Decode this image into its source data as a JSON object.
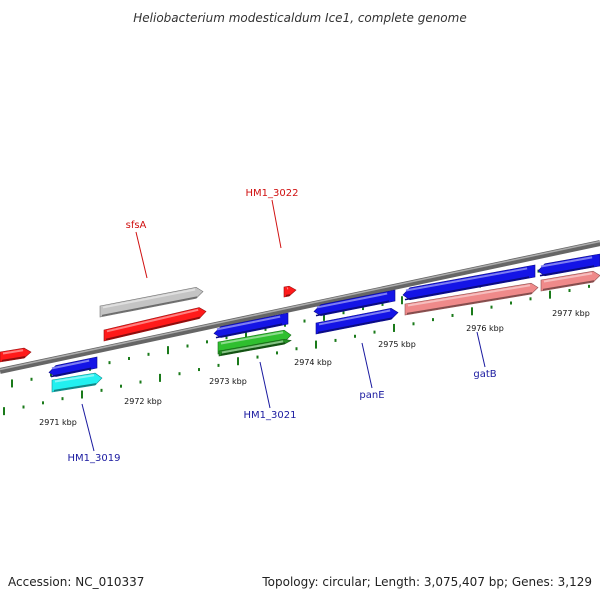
{
  "title": "Heliobacterium modesticaldum Ice1, complete genome",
  "footer": {
    "accession": "Accession: NC_010337",
    "topology": "Topology: circular; Length: 3,075,407 bp; Genes: 3,129"
  },
  "colors": {
    "backbone": "#808080",
    "tick": "#1a7a1a",
    "label_red": "#d01010",
    "label_blue": "#1a1aa0",
    "gene_red": "#ff1a1a",
    "gene_gray": "#c4c4c4",
    "gene_blue": "#1414e6",
    "gene_cyan": "#22f0f0",
    "gene_green": "#2fbf2f",
    "gene_salmon": "#ef8a8a"
  },
  "scale_labels": [
    {
      "id": "kbp-2971",
      "text": "2971 kbp"
    },
    {
      "id": "kbp-2972",
      "text": "2972 kbp"
    },
    {
      "id": "kbp-2973",
      "text": "2973 kbp"
    },
    {
      "id": "kbp-2974",
      "text": "2974 kbp"
    },
    {
      "id": "kbp-2975",
      "text": "2975 kbp"
    },
    {
      "id": "kbp-2976",
      "text": "2976 kbp"
    },
    {
      "id": "kbp-2977",
      "text": "2977 kbp"
    }
  ],
  "gene_labels": [
    {
      "id": "sfsA",
      "text": "sfsA",
      "color": "label_red"
    },
    {
      "id": "HM1_3022",
      "text": "HM1_3022",
      "color": "label_red"
    },
    {
      "id": "HM1_3019",
      "text": "HM1_3019",
      "color": "label_blue"
    },
    {
      "id": "HM1_3021",
      "text": "HM1_3021",
      "color": "label_blue"
    },
    {
      "id": "panE",
      "text": "panE",
      "color": "label_blue"
    },
    {
      "id": "gatB",
      "text": "gatB",
      "color": "label_blue"
    }
  ]
}
